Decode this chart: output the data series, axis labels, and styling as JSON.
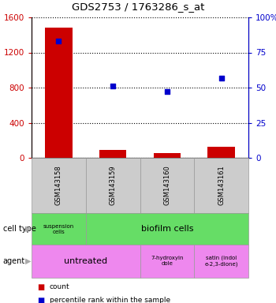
{
  "title": "GDS2753 / 1763286_s_at",
  "samples": [
    "GSM143158",
    "GSM143159",
    "GSM143160",
    "GSM143161"
  ],
  "counts": [
    1480,
    90,
    50,
    130
  ],
  "percentiles": [
    83,
    51,
    47,
    57
  ],
  "ylim_left": [
    0,
    1600
  ],
  "ylim_right": [
    0,
    100
  ],
  "yticks_left": [
    0,
    400,
    800,
    1200,
    1600
  ],
  "yticks_right": [
    0,
    25,
    50,
    75,
    100
  ],
  "ytick_labels_right": [
    "0",
    "25",
    "50",
    "75",
    "100%"
  ],
  "bar_color": "#cc0000",
  "scatter_color": "#0000cc",
  "cell_type_green": "#66dd66",
  "agent_pink": "#ee88ee",
  "sample_gray": "#cccccc",
  "fig_width": 3.5,
  "fig_height": 3.84,
  "dpi": 100
}
